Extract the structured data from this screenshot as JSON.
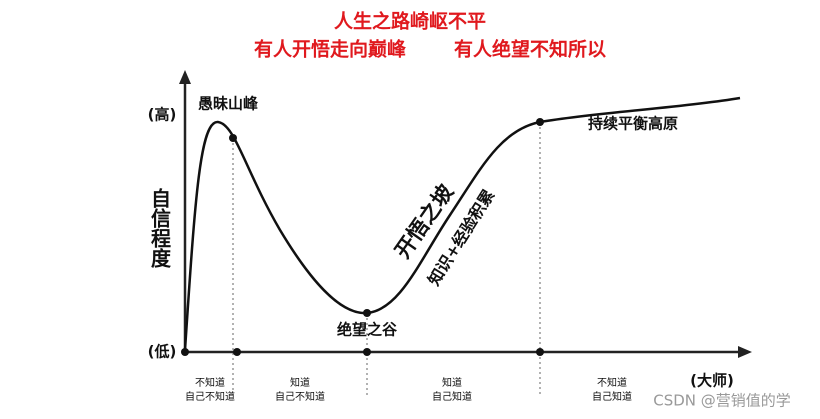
{
  "header": {
    "line1": "人生之路崎岖不平",
    "line2a": "有人开悟走向巅峰",
    "line2b": "有人绝望不知所以"
  },
  "axes": {
    "y_label": "自信程度",
    "y_high": "(高)",
    "y_low": "(低)",
    "x_label": "(大师)"
  },
  "curve_labels": {
    "peak": "愚昧山峰",
    "valley": "绝望之谷",
    "slope": "开悟之坡",
    "slope_sub": "知识+经验积累",
    "plateau": "持续平衡高原"
  },
  "stages": [
    [
      "不知道",
      "自己不知道"
    ],
    [
      "知道",
      "自己不知道"
    ],
    [
      "知道",
      "自己知道"
    ],
    [
      "不知道",
      "自己知道"
    ]
  ],
  "watermark": "CSDN @营销值的学"
}
